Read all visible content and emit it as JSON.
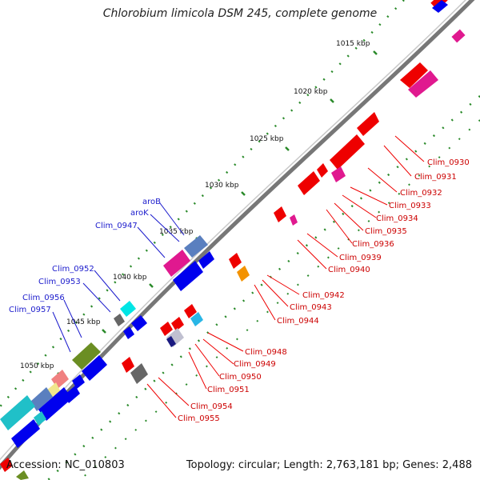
{
  "title": "Chlorobium limicola DSM 245, complete genome",
  "footer": {
    "accession": "Accession: NC_010803",
    "summary": "Topology: circular; Length: 2,763,181 bp; Genes: 2,488"
  },
  "scale_ticks": [
    "1015 kbp",
    "1020 kbp",
    "1025 kbp",
    "1030 kbp",
    "1035 kbp",
    "1040 kbp",
    "1045 kbp",
    "1050 kbp"
  ],
  "gene_labels_red": [
    "Clim_0930",
    "Clim_0931",
    "Clim_0932",
    "Clim_0933",
    "Clim_0934",
    "Clim_0935",
    "Clim_0936",
    "Clim_0939",
    "Clim_0940",
    "Clim_0942",
    "Clim_0943",
    "Clim_0944",
    "Clim_0948",
    "Clim_0949",
    "Clim_0950",
    "Clim_0951",
    "Clim_0954",
    "Clim_0955"
  ],
  "gene_labels_blue": [
    "aroB",
    "aroK",
    "Clim_0947",
    "Clim_0952",
    "Clim_0953",
    "Clim_0956",
    "Clim_0957"
  ],
  "colors": {
    "backbone": "#808080",
    "reverse_strand": "#ee0000",
    "forward_strand": "#0000ee",
    "scale_dots": "#2a8a2a"
  }
}
